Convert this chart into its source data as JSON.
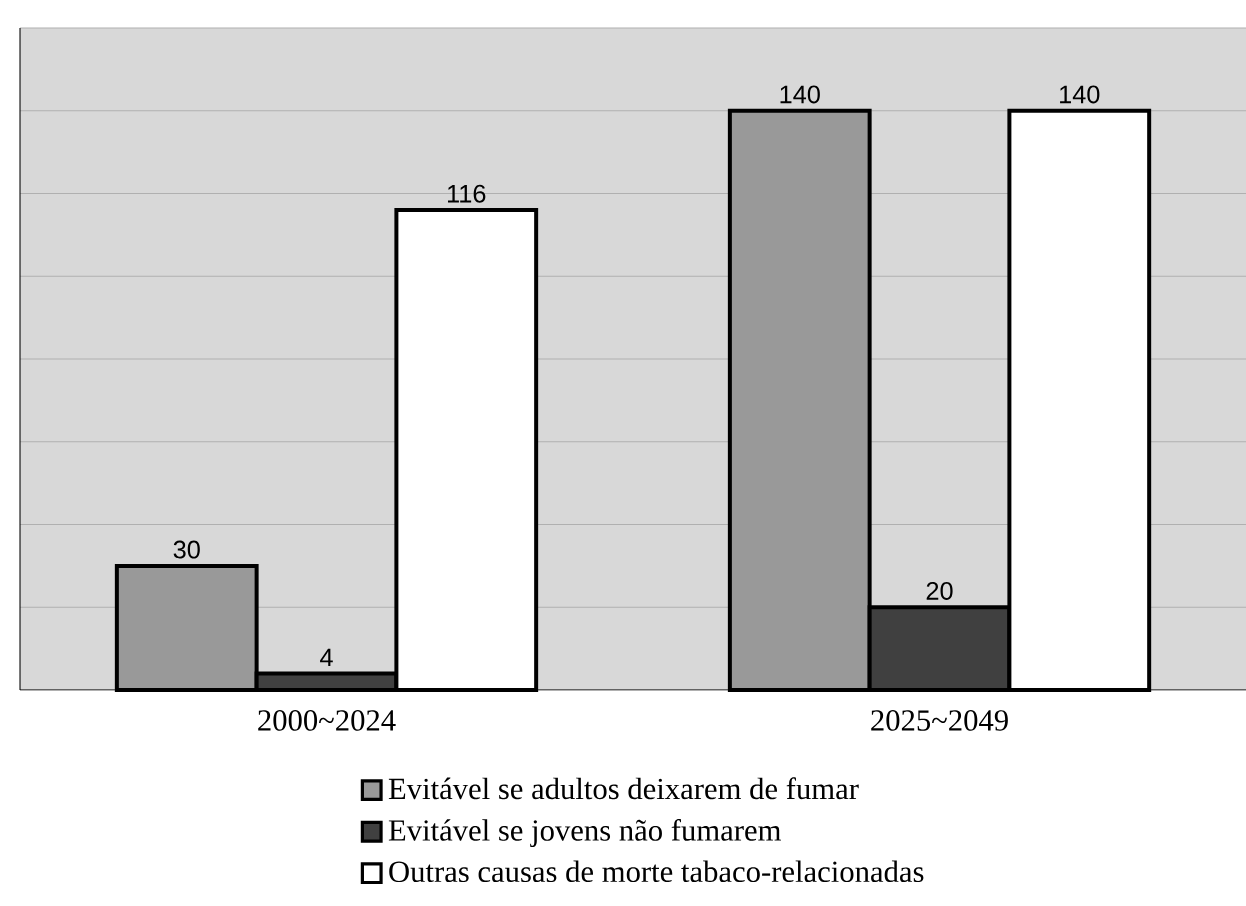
{
  "chart_data": {
    "type": "bar",
    "categories": [
      "2000~2024",
      "2025~2049"
    ],
    "series": [
      {
        "name": "Evitável se adultos deixarem de fumar",
        "color": "#999999",
        "values": [
          30,
          140
        ]
      },
      {
        "name": "Evitável se jovens não fumarem",
        "color": "#404040",
        "values": [
          4,
          20
        ]
      },
      {
        "name": "Outras causas de morte tabaco-relacionadas",
        "color": "#ffffff",
        "values": [
          116,
          140
        ]
      }
    ],
    "ylim": [
      0,
      160
    ],
    "yticks": [
      {
        "value": 0,
        "label": null
      },
      {
        "value": 20,
        "label": null
      },
      {
        "value": 40,
        "label": null
      },
      {
        "value": 60,
        "label": null
      },
      {
        "value": 80,
        "label": null
      },
      {
        "value": 100,
        "label": null
      },
      {
        "value": 120,
        "label": null
      },
      {
        "value": 140,
        "label": null
      },
      {
        "value": 160,
        "label": null
      }
    ],
    "tick_labels": "x",
    "grid": "y",
    "legend": "bottom",
    "data_labels": true
  }
}
